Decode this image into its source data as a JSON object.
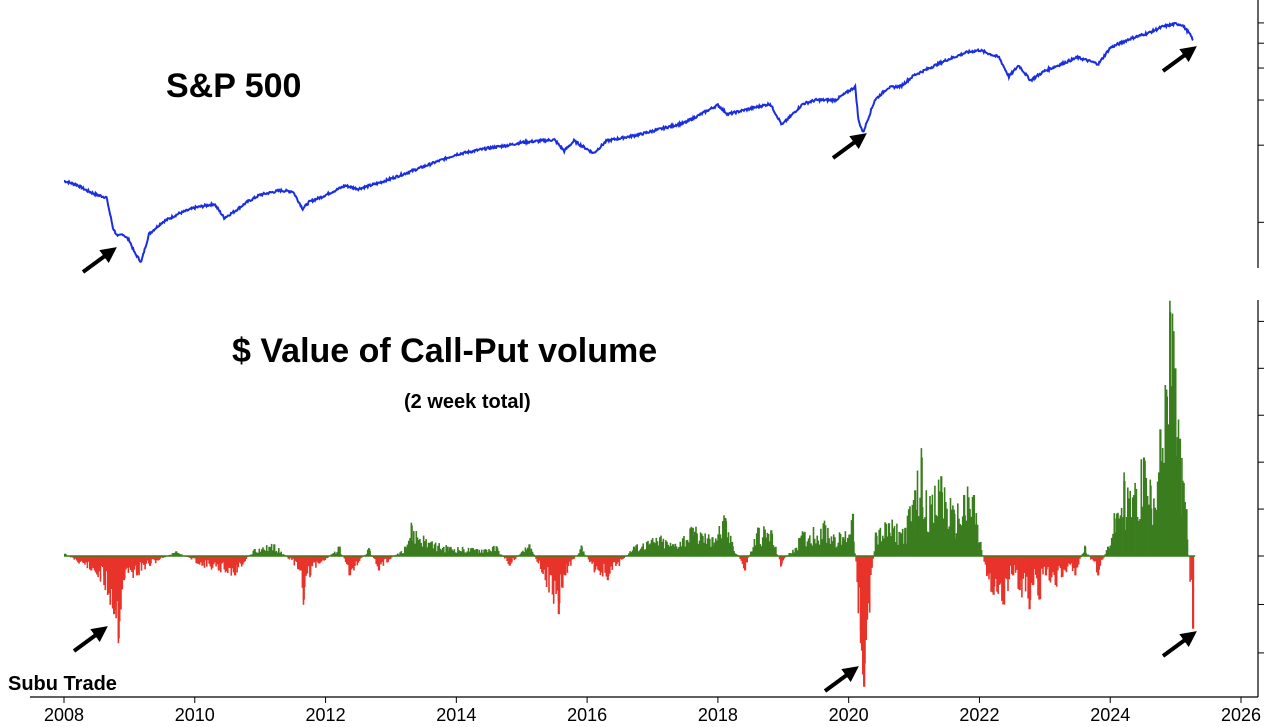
{
  "chart_data": [
    {
      "type": "line",
      "title": "S&P 500",
      "x_range": [
        2008,
        2026
      ],
      "y_scale": "log",
      "ylim": [
        700,
        6500
      ],
      "color": "#1a2ee0",
      "series": [
        {
          "name": "S&P 500",
          "x": [
            2008.0,
            2008.2,
            2008.35,
            2008.5,
            2008.65,
            2008.75,
            2008.82,
            2008.9,
            2009.0,
            2009.08,
            2009.18,
            2009.3,
            2009.5,
            2009.75,
            2010.0,
            2010.3,
            2010.45,
            2010.6,
            2010.8,
            2011.0,
            2011.3,
            2011.5,
            2011.65,
            2011.75,
            2011.95,
            2012.3,
            2012.5,
            2012.8,
            2013.0,
            2013.5,
            2014.0,
            2014.5,
            2014.8,
            2015.0,
            2015.5,
            2015.65,
            2015.8,
            2016.1,
            2016.3,
            2016.8,
            2017.0,
            2017.5,
            2018.0,
            2018.15,
            2018.5,
            2018.8,
            2018.98,
            2019.3,
            2019.5,
            2019.8,
            2020.1,
            2020.15,
            2020.22,
            2020.4,
            2020.6,
            2020.8,
            2021.0,
            2021.5,
            2021.8,
            2022.0,
            2022.3,
            2022.45,
            2022.6,
            2022.78,
            2023.0,
            2023.5,
            2023.82,
            2024.0,
            2024.3,
            2024.6,
            2024.8,
            2025.0,
            2025.1,
            2025.2,
            2025.27
          ],
          "values": [
            1450,
            1400,
            1330,
            1280,
            1250,
            950,
            880,
            900,
            850,
            760,
            700,
            900,
            1000,
            1080,
            1140,
            1180,
            1040,
            1100,
            1200,
            1280,
            1330,
            1320,
            1130,
            1200,
            1260,
            1390,
            1350,
            1420,
            1480,
            1650,
            1840,
            1950,
            2000,
            2050,
            2100,
            1900,
            2080,
            1860,
            2080,
            2200,
            2270,
            2450,
            2870,
            2640,
            2780,
            2900,
            2400,
            2900,
            3000,
            3000,
            3380,
            2500,
            2240,
            3000,
            3350,
            3400,
            3750,
            4300,
            4600,
            4700,
            4400,
            3700,
            4100,
            3580,
            3900,
            4400,
            4150,
            4800,
            5200,
            5500,
            5800,
            5950,
            5900,
            5500,
            5150
          ]
        }
      ],
      "annotations": [
        "arrow-2008",
        "arrow-2020",
        "arrow-2025"
      ]
    },
    {
      "type": "bar",
      "title": "$ Value of Call-Put volume",
      "subtitle": "(2 week total)",
      "x_range": [
        2008,
        2026
      ],
      "xlabel": "",
      "xticks": [
        "2008",
        "2010",
        "2012",
        "2014",
        "2016",
        "2018",
        "2020",
        "2022",
        "2024",
        "2026"
      ],
      "positive_color": "#3a7d1e",
      "negative_color": "#e8332a",
      "ylim": [
        -26,
        52
      ],
      "series": [
        {
          "name": "Call-Put $ volume",
          "x": [
            2008.0,
            2008.4,
            2008.6,
            2008.75,
            2008.82,
            2008.9,
            2009.1,
            2009.3,
            2009.7,
            2010.1,
            2010.35,
            2010.6,
            2010.9,
            2011.2,
            2011.6,
            2011.65,
            2011.75,
            2012.2,
            2012.35,
            2012.65,
            2012.8,
            2013.2,
            2013.3,
            2013.6,
            2013.85,
            2014.3,
            2014.6,
            2014.8,
            2015.1,
            2015.35,
            2015.55,
            2015.65,
            2015.9,
            2016.1,
            2016.3,
            2016.7,
            2016.9,
            2017.1,
            2017.3,
            2017.6,
            2017.9,
            2018.1,
            2018.2,
            2018.4,
            2018.6,
            2018.8,
            2018.95,
            2019.3,
            2019.6,
            2019.9,
            2020.05,
            2020.17,
            2020.22,
            2020.4,
            2020.6,
            2020.85,
            2021.0,
            2021.1,
            2021.25,
            2021.4,
            2021.6,
            2021.75,
            2021.9,
            2022.0,
            2022.1,
            2022.2,
            2022.35,
            2022.5,
            2022.6,
            2022.75,
            2022.8,
            2022.9,
            2023.0,
            2023.15,
            2023.3,
            2023.45,
            2023.6,
            2023.8,
            2023.95,
            2024.05,
            2024.2,
            2024.35,
            2024.5,
            2024.6,
            2024.75,
            2024.85,
            2024.9,
            2024.98,
            2025.05,
            2025.15,
            2025.25
          ],
          "values": [
            0.5,
            -3,
            -6,
            -12,
            -17,
            -5,
            -4,
            -2,
            1,
            -2,
            -3,
            -4,
            1.5,
            2.5,
            -3,
            -9,
            -4,
            2,
            -4,
            1.5,
            -3,
            2,
            6.5,
            3,
            2,
            1.5,
            2,
            -2,
            2.5,
            -5,
            -12,
            -4,
            2,
            -3,
            -5,
            2,
            3,
            4,
            2.5,
            6,
            4,
            8,
            3,
            -3,
            6,
            5.5,
            -2,
            5,
            7,
            4,
            9,
            -18,
            -27,
            5,
            7,
            6,
            14,
            21,
            11,
            17,
            9,
            13,
            13,
            3,
            -4,
            -8,
            -10,
            -4,
            -7,
            -11,
            -6,
            -9,
            -4,
            -6,
            -3,
            -4,
            2,
            -4,
            2,
            8,
            16,
            13,
            21,
            15,
            27,
            34,
            52,
            40,
            25,
            10,
            -15
          ]
        }
      ],
      "annotations": [
        "arrow-2008",
        "arrow-2020",
        "arrow-2025"
      ]
    }
  ],
  "labels": {
    "sp500_title": "S&P 500",
    "cp_title": "$ Value of Call-Put volume",
    "cp_subtitle": "(2 week total)",
    "watermark": "Subu Trade"
  }
}
